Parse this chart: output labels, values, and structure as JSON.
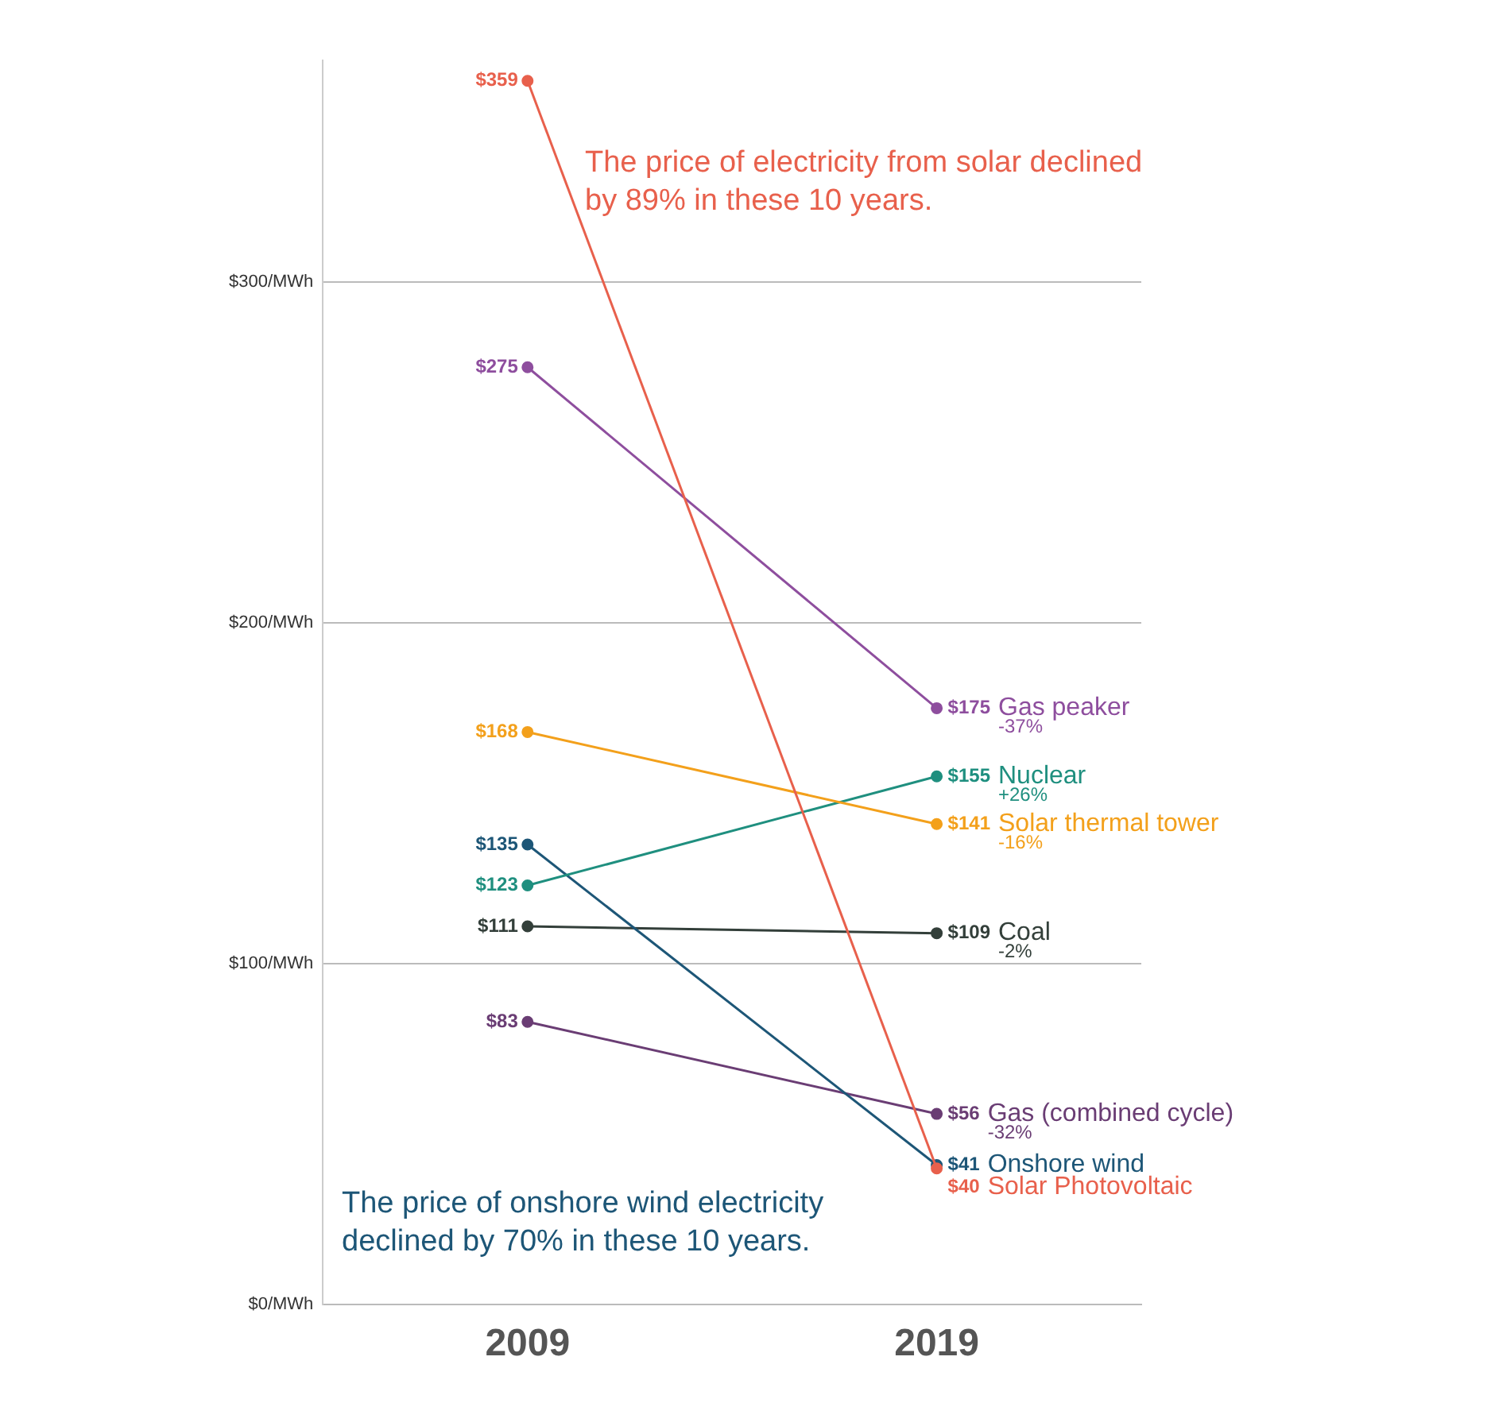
{
  "chart_data": {
    "type": "line",
    "categories": [
      "2009",
      "2019"
    ],
    "ylim": [
      0,
      365
    ],
    "yticks": [
      {
        "value": 0,
        "label": "$0/MWh"
      },
      {
        "value": 100,
        "label": "$100/MWh"
      },
      {
        "value": 200,
        "label": "$200/MWh"
      },
      {
        "value": 300,
        "label": "$300/MWh"
      }
    ],
    "grid": "y",
    "legend": false,
    "marker": "circle",
    "line_style": "solid",
    "series": [
      {
        "name": "Solar Photovoltaic",
        "color": "#e8604c",
        "values": [
          359,
          40
        ],
        "value_labels": [
          "$359",
          "$40"
        ]
      },
      {
        "name": "Gas peaker",
        "color": "#8e4e9e",
        "values": [
          275,
          175
        ],
        "value_labels": [
          "$275",
          "$175"
        ]
      },
      {
        "name": "Solar thermal tower",
        "color": "#f3a01b",
        "values": [
          168,
          141
        ],
        "value_labels": [
          "$168",
          "$141"
        ]
      },
      {
        "name": "Nuclear",
        "color": "#1f8f7f",
        "values": [
          123,
          155
        ],
        "value_labels": [
          "$123",
          "$155"
        ]
      },
      {
        "name": "Onshore wind",
        "color": "#1d5677",
        "values": [
          135,
          41
        ],
        "value_labels": [
          "$135",
          "$41"
        ]
      },
      {
        "name": "Coal",
        "color": "#333f3a",
        "values": [
          111,
          109
        ],
        "value_labels": [
          "$111",
          "$109"
        ]
      },
      {
        "name": "Gas (combined cycle)",
        "color": "#6a3d74",
        "values": [
          83,
          56
        ],
        "value_labels": [
          "$83",
          "$56"
        ]
      }
    ],
    "annotations": [
      "The price of electricity from solar declined by 89% in these 10 years.",
      "The price of onshore wind electricity declined by 70% in these 10 years.",
      "-37%",
      "+26%",
      "-16%",
      "-2%",
      "-32%"
    ]
  }
}
